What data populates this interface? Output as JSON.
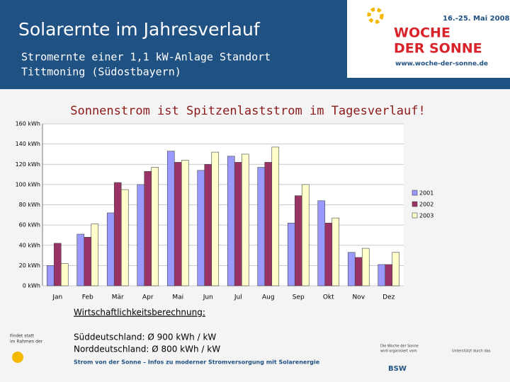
{
  "header": {
    "title": "Solarernte im Jahresverlauf",
    "subtitle_lines": [
      "Stromernte einer 1,1 kW-Anlage Standort",
      "Tittmoning (Südostbayern)"
    ]
  },
  "logo": {
    "date": "16.-25. Mai 2008",
    "name_lines": [
      "WOCHE",
      "DER SONNE"
    ],
    "url": "www.woche-der-sonne.de"
  },
  "chart_data": {
    "type": "bar",
    "title": "Sonnenstrom ist Spitzenlaststrom im Tagesverlauf!",
    "categories": [
      "Jan",
      "Feb",
      "Mär",
      "Apr",
      "Mai",
      "Jun",
      "Jul",
      "Aug",
      "Sep",
      "Okt",
      "Nov",
      "Dez"
    ],
    "series": [
      {
        "name": "2001",
        "color": "#9999ff",
        "values": [
          20,
          51,
          72,
          100,
          133,
          114,
          128,
          117,
          62,
          84,
          33,
          21
        ]
      },
      {
        "name": "2002",
        "color": "#993366",
        "values": [
          42,
          48,
          102,
          113,
          122,
          120,
          122,
          122,
          89,
          62,
          28,
          21
        ]
      },
      {
        "name": "2003",
        "color": "#ffffcc",
        "values": [
          22,
          61,
          95,
          117,
          124,
          132,
          130,
          137,
          100,
          67,
          37,
          33
        ]
      }
    ],
    "ylim": [
      0,
      160
    ],
    "yticks": [
      {
        "value": 0,
        "label": "0 kWh"
      },
      {
        "value": 20,
        "label": "20 kWh"
      },
      {
        "value": 40,
        "label": "40 kWh"
      },
      {
        "value": 60,
        "label": "60 kWh"
      },
      {
        "value": 80,
        "label": "80 kWh"
      },
      {
        "value": 100,
        "label": "100 kWh"
      },
      {
        "value": 120,
        "label": "120 kWh"
      },
      {
        "value": 140,
        "label": "140 kWh"
      },
      {
        "value": 160,
        "label": "160 kWh"
      }
    ],
    "grid": true,
    "legend": "right"
  },
  "footer": {
    "heading": "Wirtschaftlichkeitsberechnung:",
    "lines": [
      "Süddeutschland: Ø 900 kWh / kW",
      "Norddeutschland: Ø 800 kWh / kW"
    ],
    "tagline": "Strom von der Sonne – Infos zu moderner Stromversorgung mit Solarenergie",
    "left_note": [
      "Findet statt",
      "im Rahmen der"
    ],
    "organizer": [
      "Die Woche der Sonne",
      "wird organisiert vom"
    ],
    "bsw": "BSW",
    "support": "Unterstützt durch das"
  }
}
